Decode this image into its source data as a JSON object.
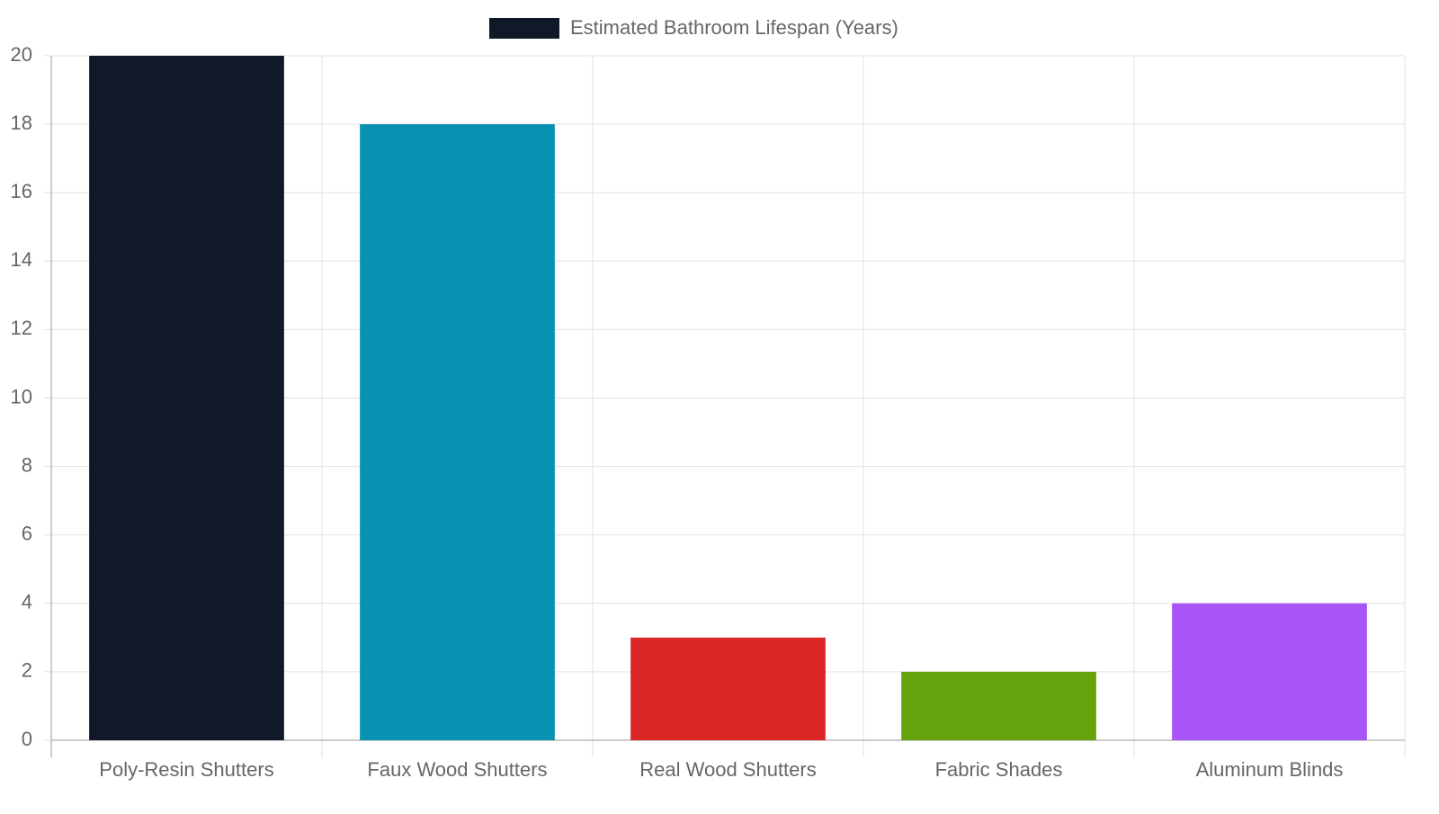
{
  "chart_data": {
    "type": "bar",
    "categories": [
      "Poly-Resin Shutters",
      "Faux Wood Shutters",
      "Real Wood Shutters",
      "Fabric Shades",
      "Aluminum Blinds"
    ],
    "series": [
      {
        "name": "Estimated Bathroom Lifespan (Years)",
        "colors": [
          "#111827",
          "#0891b2",
          "#dc2626",
          "#65a30d",
          "#a855f7"
        ],
        "values": [
          20,
          18,
          3,
          2,
          4
        ]
      }
    ],
    "ylim": [
      0,
      20
    ],
    "yticks": [
      0,
      2,
      4,
      6,
      8,
      10,
      12,
      14,
      16,
      18,
      20
    ],
    "grid": true,
    "legend": "top"
  }
}
